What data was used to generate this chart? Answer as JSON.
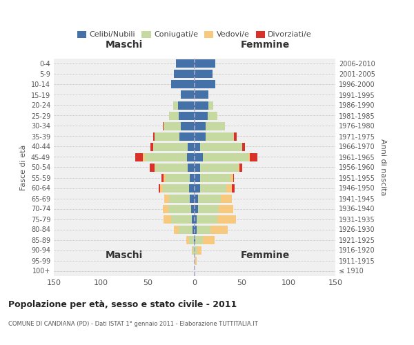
{
  "age_groups": [
    "100+",
    "95-99",
    "90-94",
    "85-89",
    "80-84",
    "75-79",
    "70-74",
    "65-69",
    "60-64",
    "55-59",
    "50-54",
    "45-49",
    "40-44",
    "35-39",
    "30-34",
    "25-29",
    "20-24",
    "15-19",
    "10-14",
    "5-9",
    "0-4"
  ],
  "birth_years": [
    "≤ 1910",
    "1911-1915",
    "1916-1920",
    "1921-1925",
    "1926-1930",
    "1931-1935",
    "1936-1940",
    "1941-1945",
    "1946-1950",
    "1951-1955",
    "1956-1960",
    "1961-1965",
    "1966-1970",
    "1971-1975",
    "1976-1980",
    "1981-1985",
    "1986-1990",
    "1991-1995",
    "1996-2000",
    "2001-2005",
    "2006-2010"
  ],
  "maschi": {
    "celibi": [
      0,
      0,
      0,
      1,
      2,
      3,
      4,
      5,
      6,
      5,
      7,
      8,
      7,
      16,
      15,
      17,
      18,
      15,
      25,
      22,
      20
    ],
    "coniugati": [
      0,
      0,
      2,
      5,
      15,
      22,
      24,
      22,
      28,
      26,
      35,
      45,
      37,
      27,
      18,
      10,
      5,
      0,
      0,
      0,
      0
    ],
    "vedovi": [
      0,
      0,
      1,
      3,
      5,
      8,
      6,
      5,
      3,
      2,
      1,
      2,
      0,
      0,
      0,
      0,
      0,
      0,
      0,
      0,
      0
    ],
    "divorziati": [
      0,
      0,
      0,
      0,
      0,
      0,
      0,
      0,
      1,
      2,
      5,
      8,
      3,
      1,
      1,
      0,
      0,
      0,
      0,
      0,
      0
    ]
  },
  "femmine": {
    "nubili": [
      0,
      0,
      0,
      1,
      2,
      2,
      4,
      4,
      6,
      6,
      6,
      9,
      6,
      12,
      12,
      14,
      15,
      15,
      22,
      19,
      22
    ],
    "coniugate": [
      0,
      1,
      3,
      8,
      15,
      22,
      22,
      24,
      28,
      32,
      40,
      48,
      45,
      30,
      20,
      10,
      5,
      0,
      0,
      0,
      0
    ],
    "vedove": [
      0,
      1,
      4,
      12,
      18,
      20,
      15,
      12,
      6,
      3,
      2,
      2,
      0,
      0,
      0,
      0,
      0,
      0,
      0,
      0,
      0
    ],
    "divorziate": [
      0,
      0,
      0,
      0,
      0,
      0,
      0,
      0,
      3,
      1,
      3,
      8,
      3,
      3,
      0,
      0,
      0,
      0,
      0,
      0,
      0
    ]
  },
  "colors": {
    "celibi": "#4472a8",
    "coniugati": "#c5d9a0",
    "vedovi": "#f7c97e",
    "divorziati": "#d9312a"
  },
  "xlim": 150,
  "title": "Popolazione per età, sesso e stato civile - 2011",
  "subtitle": "COMUNE DI CANDIANA (PD) - Dati ISTAT 1° gennaio 2011 - Elaborazione TUTTITALIA.IT",
  "ylabel": "Fasce di età",
  "y2label": "Anni di nascita",
  "xlabel_maschi": "Maschi",
  "xlabel_femmine": "Femmine",
  "bg_color": "#f0f0f0",
  "grid_color": "#cccccc"
}
